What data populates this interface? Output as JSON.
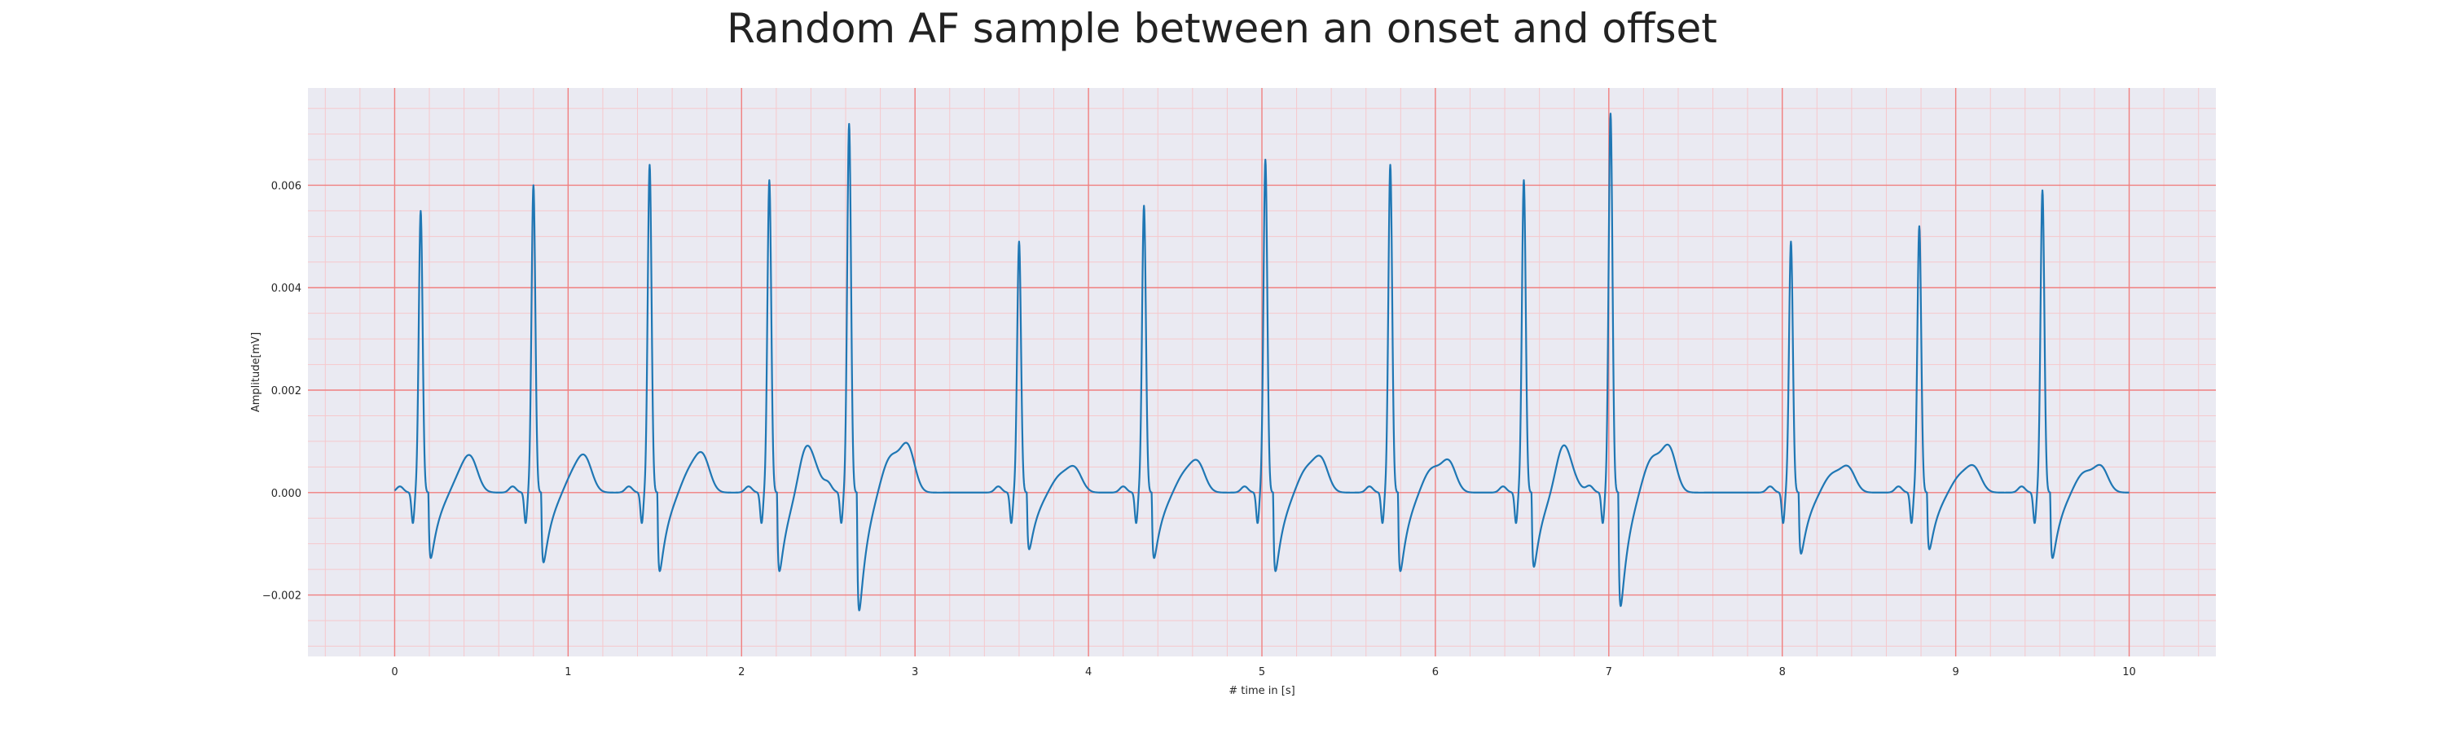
{
  "chart_data": {
    "type": "line",
    "title": "Random AF sample between an onset and offset",
    "xlabel": "# time in [s]",
    "ylabel": "Amplitude[mV]",
    "xlim": [
      -0.5,
      10.5
    ],
    "ylim": [
      -0.0032,
      0.0079
    ],
    "xticks": [
      0,
      1,
      2,
      3,
      4,
      5,
      6,
      7,
      8,
      9,
      10
    ],
    "yticks": [
      -0.002,
      0.0,
      0.002,
      0.004,
      0.006
    ],
    "ytick_labels": [
      "−0.002",
      "0.000",
      "0.002",
      "0.004",
      "0.006"
    ],
    "xtick_labels": [
      "0",
      "1",
      "2",
      "3",
      "4",
      "5",
      "6",
      "7",
      "8",
      "9",
      "10"
    ],
    "grid": true,
    "minor_grid": true,
    "colors": {
      "line": "#1f77b4",
      "background": "#eaeaf2",
      "major_grid": "#f08080",
      "minor_grid": "#f6c8cc"
    },
    "series": [
      {
        "x_start": 0,
        "x_end": 10,
        "beats": [
          {
            "t": 0.15,
            "peak": 0.0055,
            "trough": -0.0015
          },
          {
            "t": 0.8,
            "peak": 0.006,
            "trough": -0.0016
          },
          {
            "t": 1.47,
            "peak": 0.0064,
            "trough": -0.0018
          },
          {
            "t": 2.16,
            "peak": 0.0061,
            "trough": -0.0018
          },
          {
            "t": 2.62,
            "peak": 0.0072,
            "trough": -0.0027
          },
          {
            "t": 3.6,
            "peak": 0.0049,
            "trough": -0.0013
          },
          {
            "t": 4.32,
            "peak": 0.0056,
            "trough": -0.0015
          },
          {
            "t": 5.02,
            "peak": 0.0065,
            "trough": -0.0018
          },
          {
            "t": 5.74,
            "peak": 0.0064,
            "trough": -0.0018
          },
          {
            "t": 6.51,
            "peak": 0.0061,
            "trough": -0.0017
          },
          {
            "t": 7.01,
            "peak": 0.0074,
            "trough": -0.0026
          },
          {
            "t": 8.05,
            "peak": 0.0049,
            "trough": -0.0014
          },
          {
            "t": 8.79,
            "peak": 0.0052,
            "trough": -0.0013
          },
          {
            "t": 9.5,
            "peak": 0.0059,
            "trough": -0.0015
          }
        ]
      }
    ]
  }
}
